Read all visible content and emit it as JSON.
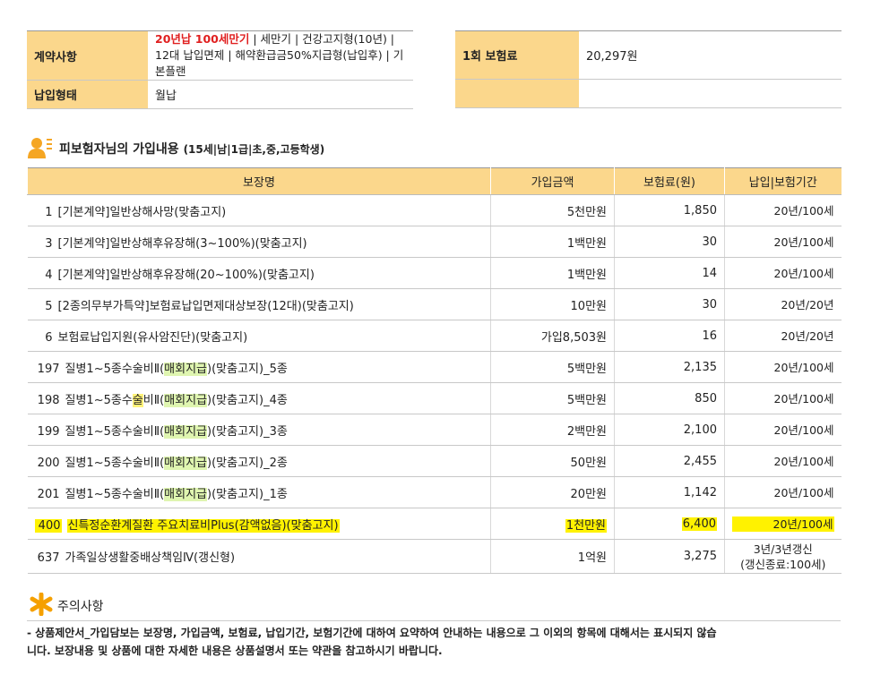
{
  "summary": {
    "contract_label": "계약사항",
    "plan_highlight": "20년납 100세만기",
    "plan_rest": " | 세만기 | 건강고지형(10년) | 12대 납입면제 | 해약환급금50%지급형(납입후) | 기본플랜",
    "payment_label": "납입형태",
    "payment_value": "월납",
    "premium_label": "1회 보험료",
    "premium_value": "20,297원"
  },
  "section": {
    "title": "피보험자님의 가입내용",
    "subtitle": "(15세|남|1급|초,중,고등학생)"
  },
  "table": {
    "headers": [
      "보장명",
      "가입금액",
      "보험료(원)",
      "납입|보험기간"
    ],
    "rows": [
      {
        "no": "1",
        "name": [
          {
            "text": "[기본계약]일반상해사망(맞춤고지)"
          }
        ],
        "amount": "5천만원",
        "premium": "1,850",
        "period": [
          "20년/100세"
        ]
      },
      {
        "no": "3",
        "name": [
          {
            "text": "[기본계약]일반상해후유장해(3~100%)(맞춤고지)"
          }
        ],
        "amount": "1백만원",
        "premium": "30",
        "period": [
          "20년/100세"
        ]
      },
      {
        "no": "4",
        "name": [
          {
            "text": "[기본계약]일반상해후유장해(20~100%)(맞춤고지)"
          }
        ],
        "amount": "1백만원",
        "premium": "14",
        "period": [
          "20년/100세"
        ]
      },
      {
        "no": "5",
        "name": [
          {
            "text": "[2종의무부가특약]보험료납입면제대상보장(12대)(맞춤고지)"
          }
        ],
        "amount": "10만원",
        "premium": "30",
        "period": [
          "20년/20년"
        ]
      },
      {
        "no": "6",
        "name": [
          {
            "text": "보험료납입지원(유사암진단)(맞춤고지)"
          }
        ],
        "amount": "가입8,503원",
        "premium": "16",
        "period": [
          "20년/20년"
        ]
      },
      {
        "no": "197",
        "name": [
          {
            "text": "질병1~5종수술비Ⅱ("
          },
          {
            "text": "매회지급",
            "highlight": "#dff5b0"
          },
          {
            "text": ")(맞춤고지)_5종"
          }
        ],
        "amount": "5백만원",
        "premium": "2,135",
        "period": [
          "20년/100세"
        ]
      },
      {
        "no": "198",
        "name": [
          {
            "text": "질병1~5종수"
          },
          {
            "text": "술",
            "highlight": "#fff27a"
          },
          {
            "text": "비Ⅱ("
          },
          {
            "text": "매회지급",
            "highlight": "#dff5b0"
          },
          {
            "text": ")(맞춤고지)_4종"
          }
        ],
        "amount": "5백만원",
        "premium": "850",
        "period": [
          "20년/100세"
        ]
      },
      {
        "no": "199",
        "name": [
          {
            "text": "질병1~5종수술비Ⅱ("
          },
          {
            "text": "매회지급",
            "highlight": "#dff5b0"
          },
          {
            "text": ")(맞춤고지)_3종"
          }
        ],
        "amount": "2백만원",
        "premium": "2,100",
        "period": [
          "20년/100세"
        ]
      },
      {
        "no": "200",
        "name": [
          {
            "text": "질병1~5종수술비Ⅱ("
          },
          {
            "text": "매회지급",
            "highlight": "#dff5b0"
          },
          {
            "text": ")(맞춤고지)_2종"
          }
        ],
        "amount": "50만원",
        "premium": "2,455",
        "period": [
          "20년/100세"
        ]
      },
      {
        "no": "201",
        "name": [
          {
            "text": "질병1~5종수술비Ⅱ("
          },
          {
            "text": "매회지급",
            "highlight": "#dff5b0"
          },
          {
            "text": ")(맞춤고지)_1종"
          }
        ],
        "amount": "20만원",
        "premium": "1,142",
        "period": [
          "20년/100세"
        ]
      },
      {
        "no": "400",
        "name": [
          {
            "text": "신특정순환계질환 주요치료비Plus(감액없음)(맞춤고지)"
          }
        ],
        "amount": "1천만원",
        "premium": "6,400",
        "period": [
          "20년/100세"
        ],
        "highlight": "#fff200"
      },
      {
        "no": "637",
        "name": [
          {
            "text": "가족일상생활중배상책임Ⅳ(갱신형)"
          }
        ],
        "amount": "1억원",
        "premium": "3,275",
        "period": [
          "3년/3년갱신",
          "(갱신종료:100세)"
        ]
      }
    ]
  },
  "notice": {
    "title": "주의사항",
    "lines": [
      "- 상품제안서_가입담보는 보장명, 가입금액, 보험료, 납입기간, 보험기간에 대하여 요약하여 안내하는 내용으로 그 이외의 항목에 대해서는 표시되지 않습",
      "니다. 보장내용 및 상품에 대한 자세한 내용은 상품설명서 또는 약관을 참고하시기 바랍니다."
    ]
  }
}
